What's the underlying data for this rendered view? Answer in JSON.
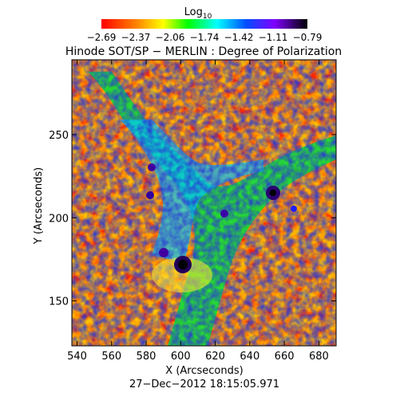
{
  "colorbar": {
    "title": "Log",
    "title_sub": "10",
    "tick_labels": [
      "−2.69",
      "−2.37",
      "−2.06",
      "−1.74",
      "−1.42",
      "−1.11",
      "−0.79"
    ],
    "min": -2.69,
    "max": -0.79,
    "colormap": "rainbow (red → yellow → green → cyan → blue → purple → black)"
  },
  "figure": {
    "title": "Hinode SOT/SP − MERLIN : Degree of Polarization",
    "xlabel": "X (Arcseconds)",
    "ylabel": "Y (Arcseconds)",
    "timestamp": "27−Dec−2012 18:15:05.971"
  },
  "axes": {
    "x_ticks": [
      "540",
      "560",
      "580",
      "600",
      "620",
      "640",
      "660",
      "680"
    ],
    "x_values": [
      540,
      560,
      580,
      600,
      620,
      640,
      660,
      680
    ],
    "y_ticks": [
      "150",
      "200",
      "250"
    ],
    "y_values": [
      150,
      200,
      250
    ],
    "x_range": [
      537,
      690
    ],
    "y_range": [
      123,
      295
    ]
  },
  "map": {
    "features": [
      {
        "name": "dark spot",
        "x": 602,
        "y": 172
      },
      {
        "name": "dark spot",
        "x": 653,
        "y": 212
      }
    ]
  }
}
